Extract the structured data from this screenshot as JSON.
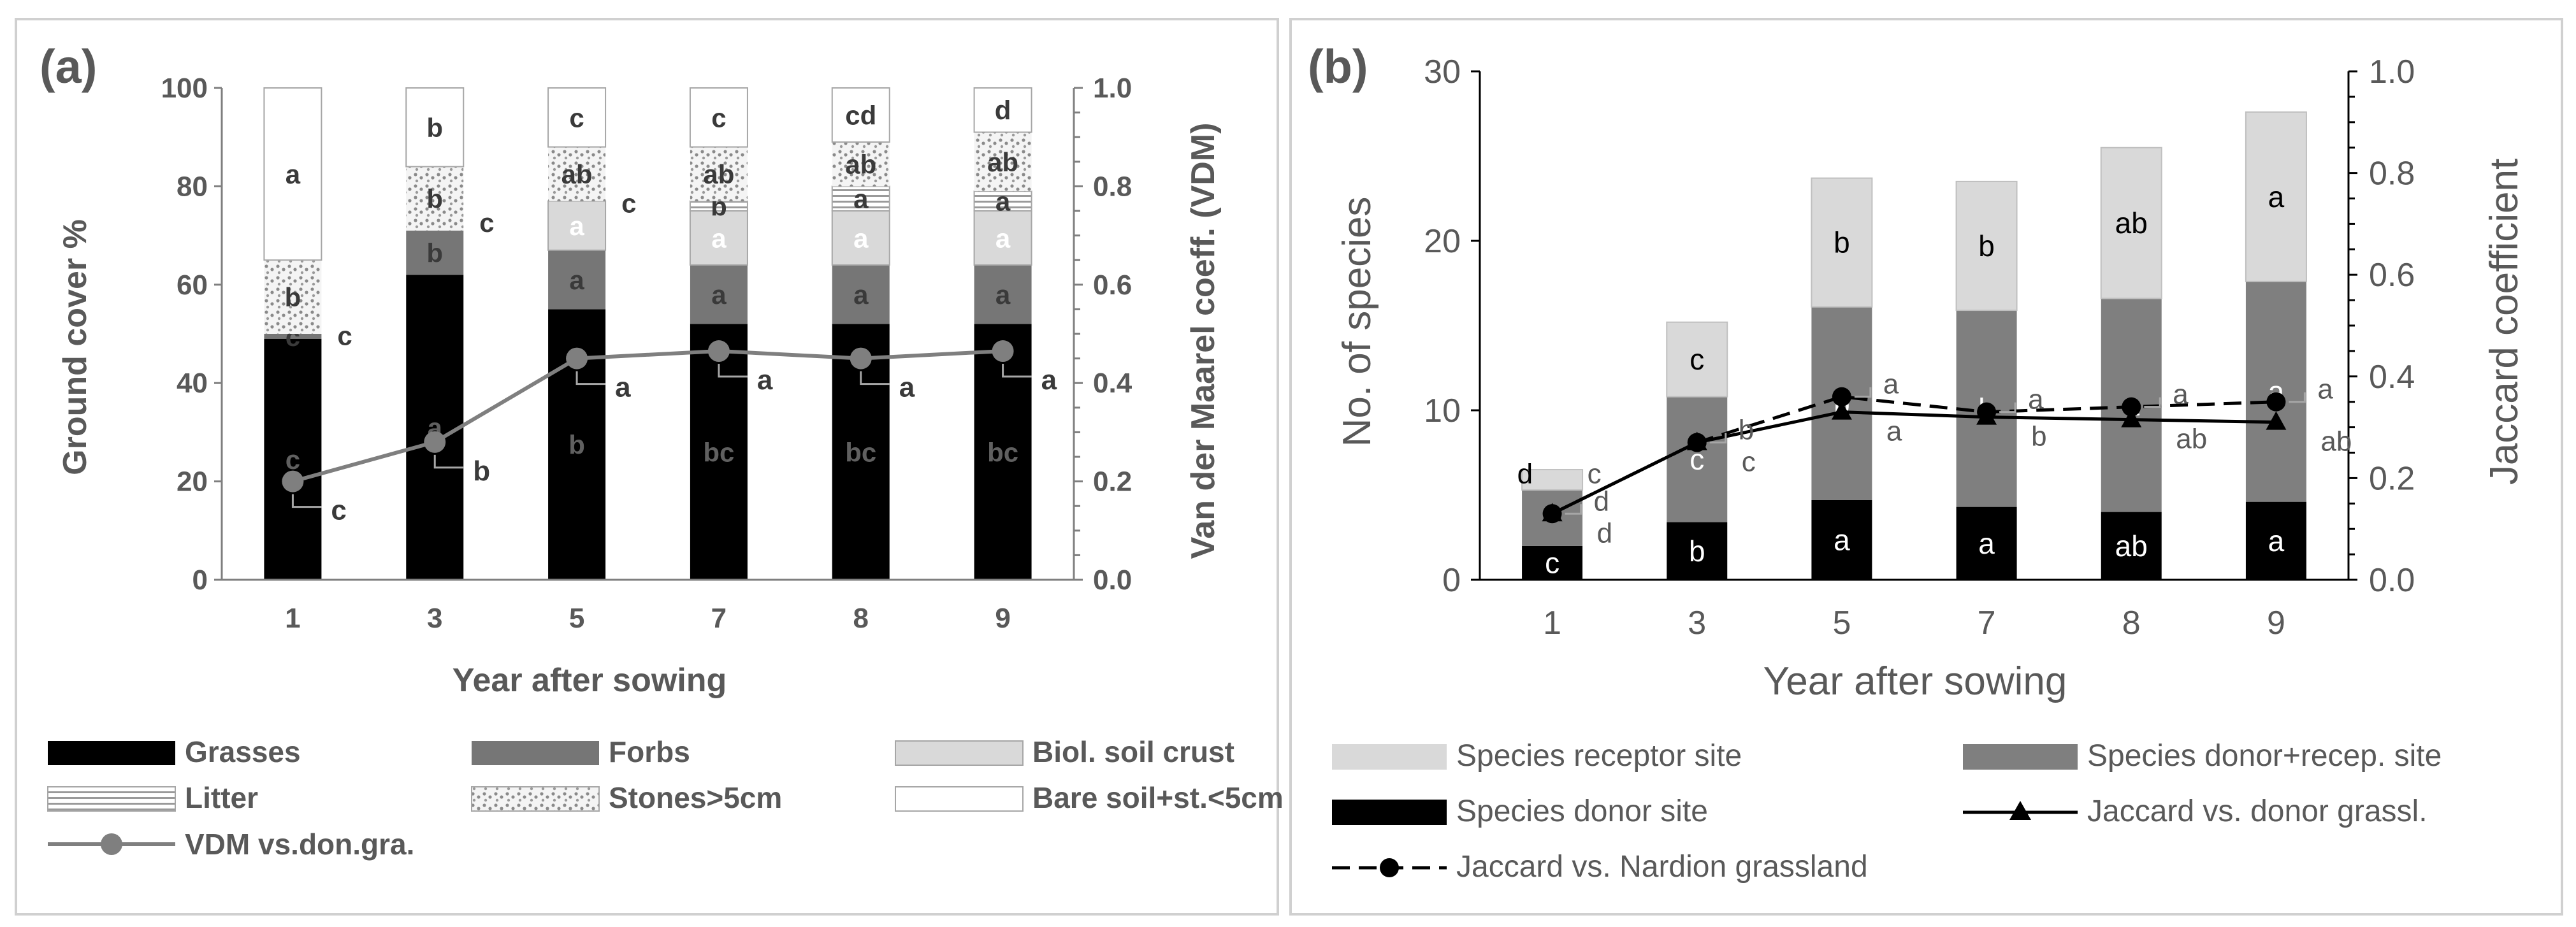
{
  "chart_data": [
    {
      "type": "bar",
      "stacked": true,
      "panel_label": "(a)",
      "xlabel": "Year after sowing",
      "ylabel": "Ground cover %",
      "y2label": "Van der Maarel coeff. (VDM)",
      "categories": [
        "1",
        "3",
        "5",
        "7",
        "8",
        "9"
      ],
      "ylim": [
        0,
        100
      ],
      "yticks": [
        "0",
        "20",
        "40",
        "60",
        "80",
        "100"
      ],
      "y2lim": [
        0,
        1
      ],
      "y2ticks": [
        "0.0",
        "0.2",
        "0.4",
        "0.6",
        "0.8",
        "1.0"
      ],
      "series": [
        {
          "name": "Grasses",
          "color": "#000000",
          "values": [
            49,
            62,
            55,
            52,
            52,
            52
          ],
          "letters": [
            "c",
            "a",
            "b",
            "bc",
            "bc",
            "bc"
          ]
        },
        {
          "name": "Forbs",
          "color": "#767676",
          "values": [
            1,
            9,
            12,
            12,
            12,
            12
          ],
          "letters": [
            "c",
            "b",
            "a",
            "a",
            "a",
            "a"
          ]
        },
        {
          "name": "Biol. soil crust",
          "color": "#d9d9d9",
          "values": [
            0,
            0,
            10,
            11,
            11,
            11
          ],
          "letters": [
            "c",
            "c",
            "a",
            "a",
            "a",
            "a"
          ]
        },
        {
          "name": "Litter",
          "color": "#f2f2f2",
          "pattern": "hlines",
          "values": [
            0,
            0,
            0,
            2,
            5,
            4
          ],
          "letters": [
            "",
            "",
            "",
            "b",
            "a",
            "a"
          ]
        },
        {
          "name": "Stones>5cm",
          "color": "#efefef",
          "pattern": "dots",
          "values": [
            15,
            13,
            11,
            11,
            9,
            12
          ],
          "letters": [
            "b",
            "b",
            "ab",
            "ab",
            "ab",
            "ab"
          ]
        },
        {
          "name": "Bare soil+st.<5cm",
          "color": "#ffffff",
          "values": [
            35,
            16,
            12,
            12,
            11,
            9
          ],
          "letters": [
            "a",
            "b",
            "c",
            "c",
            "cd",
            "d"
          ]
        }
      ],
      "line_series": [
        {
          "name": "VDM vs.don.gra.",
          "axis": "right",
          "color": "#7f7f7f",
          "values": [
            0.2,
            0.28,
            0.45,
            0.465,
            0.45,
            0.465
          ],
          "letters": [
            "c",
            "b",
            "a",
            "a",
            "a",
            "a"
          ]
        }
      ],
      "grid": false,
      "legend": "bottom"
    },
    {
      "type": "bar",
      "stacked": true,
      "panel_label": "(b)",
      "xlabel": "Year after sowing",
      "ylabel": "No. of species",
      "y2label": "Jaccard coefficient",
      "categories": [
        "1",
        "3",
        "5",
        "7",
        "8",
        "9"
      ],
      "ylim": [
        0,
        30
      ],
      "yticks": [
        "0",
        "10",
        "20",
        "30"
      ],
      "y2lim": [
        0,
        1
      ],
      "y2ticks": [
        "0.0",
        "0.2",
        "0.4",
        "0.6",
        "0.8",
        "1.0"
      ],
      "series": [
        {
          "name": "Species donor site",
          "color": "#000000",
          "values": [
            2,
            3.4,
            4.7,
            4.3,
            4,
            4.6
          ],
          "letters": [
            "c",
            "b",
            "a",
            "a",
            "ab",
            "a"
          ]
        },
        {
          "name": "Species donor+recep. site",
          "color": "#7f7f7f",
          "values": [
            3.3,
            7.4,
            11.4,
            11.6,
            12.6,
            13
          ],
          "letters": [
            "d",
            "c",
            "b",
            "b",
            "a",
            "a"
          ]
        },
        {
          "name": "Species receptor site",
          "color": "#d9d9d9",
          "values": [
            1.2,
            4.4,
            7.6,
            7.6,
            8.9,
            10
          ],
          "letters": [
            "c",
            "c",
            "b",
            "b",
            "ab",
            "a"
          ]
        }
      ],
      "line_series": [
        {
          "name": "Jaccard vs. donor grassl.",
          "axis": "right",
          "style": "solid-triangle",
          "values": [
            0.13,
            0.27,
            0.33,
            0.32,
            0.315,
            0.31
          ],
          "letters": [
            "d",
            "c",
            "a",
            "b",
            "ab",
            "ab"
          ]
        },
        {
          "name": "Jaccard vs. Nardion grassland",
          "axis": "right",
          "style": "dashed-circle",
          "values": [
            0.13,
            0.27,
            0.36,
            0.33,
            0.34,
            0.35
          ],
          "letters": [
            "d",
            "b",
            "a",
            "a",
            "a",
            "a"
          ]
        }
      ],
      "grid": false,
      "legend": "bottom"
    }
  ]
}
